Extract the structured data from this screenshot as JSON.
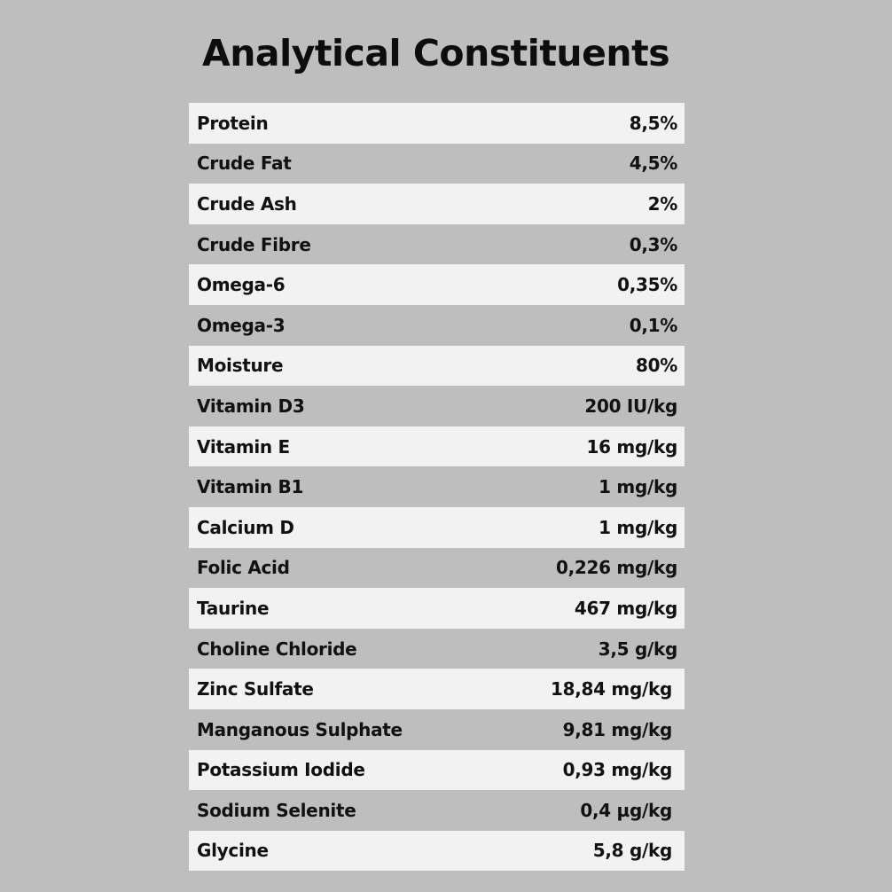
{
  "title": "Analytical Constituents",
  "rows": [
    {
      "name": "Protein",
      "value": "8,5%"
    },
    {
      "name": "Crude Fat",
      "value": "4,5%"
    },
    {
      "name": "Crude Ash",
      "value": "2%"
    },
    {
      "name": "Crude Fibre",
      "value": "0,3%"
    },
    {
      "name": "Omega-6",
      "value": "0,35%"
    },
    {
      "name": "Omega-3",
      "value": "0,1%"
    },
    {
      "name": "Moisture",
      "value": "80%"
    },
    {
      "name": "Vitamin D3",
      "value": "200 IU/kg"
    },
    {
      "name": "Vitamin E",
      "value": "16 mg/kg"
    },
    {
      "name": "Vitamin B1",
      "value": "1 mg/kg"
    },
    {
      "name": "Calcium D",
      "value": "1 mg/kg"
    },
    {
      "name": "Folic Acid",
      "value": "0,226 mg/kg"
    },
    {
      "name": "Taurine",
      "value": "467 mg/kg"
    },
    {
      "name": "Choline Chloride",
      "value": "3,5 g/kg"
    },
    {
      "name": "Zinc Sulfate",
      "value": "18,84 mg/kg"
    },
    {
      "name": "Manganous Sulphate",
      "value": "9,81 mg/kg"
    },
    {
      "name": "Potassium Iodide",
      "value": "0,93 mg/kg"
    },
    {
      "name": "Sodium Selenite",
      "value": "0,4 µg/kg"
    },
    {
      "name": "Glycine",
      "value": "5,8 g/kg"
    }
  ]
}
